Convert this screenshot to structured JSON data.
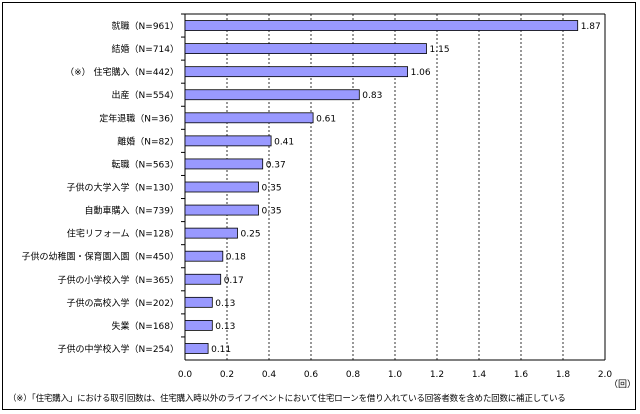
{
  "chart_data": {
    "type": "bar",
    "orientation": "horizontal",
    "categories": [
      "就職（N=961）",
      "結婚（N=714）",
      "（※） 住宅購入（N=442）",
      "出産（N=554）",
      "定年退職（N=36）",
      "離婚（N=82）",
      "転職（N=563）",
      "子供の大学入学（N=130）",
      "自動車購入（N=739）",
      "住宅リフォーム（N=128）",
      "子供の幼稚園・保育園入園（N=450）",
      "子供の小学校入学（N=365）",
      "子供の高校入学（N=202）",
      "失業（N=168）",
      "子供の中学校入学（N=254）"
    ],
    "values": [
      1.87,
      1.15,
      1.06,
      0.83,
      0.61,
      0.41,
      0.37,
      0.35,
      0.35,
      0.25,
      0.18,
      0.17,
      0.13,
      0.13,
      0.11
    ],
    "value_labels": [
      "1.87",
      "1.15",
      "1.06",
      "0.83",
      "0.61",
      "0.41",
      "0.37",
      "0.35",
      "0.35",
      "0.25",
      "0.18",
      "0.17",
      "0.13",
      "0.13",
      "0.11"
    ],
    "xlim": [
      0,
      2.0
    ],
    "xticks": [
      "0.0",
      "0.2",
      "0.4",
      "0.6",
      "0.8",
      "1.0",
      "1.2",
      "1.4",
      "1.6",
      "1.8",
      "2.0"
    ],
    "xunit": "（回）",
    "grid": true,
    "bar_color": "#9999ff",
    "footnote": "（※）「住宅購入」における取引回数は、住宅購入時以外のライフイベントにおいて住宅ローンを借り入れている回答者数を含めた回数に補正している"
  }
}
